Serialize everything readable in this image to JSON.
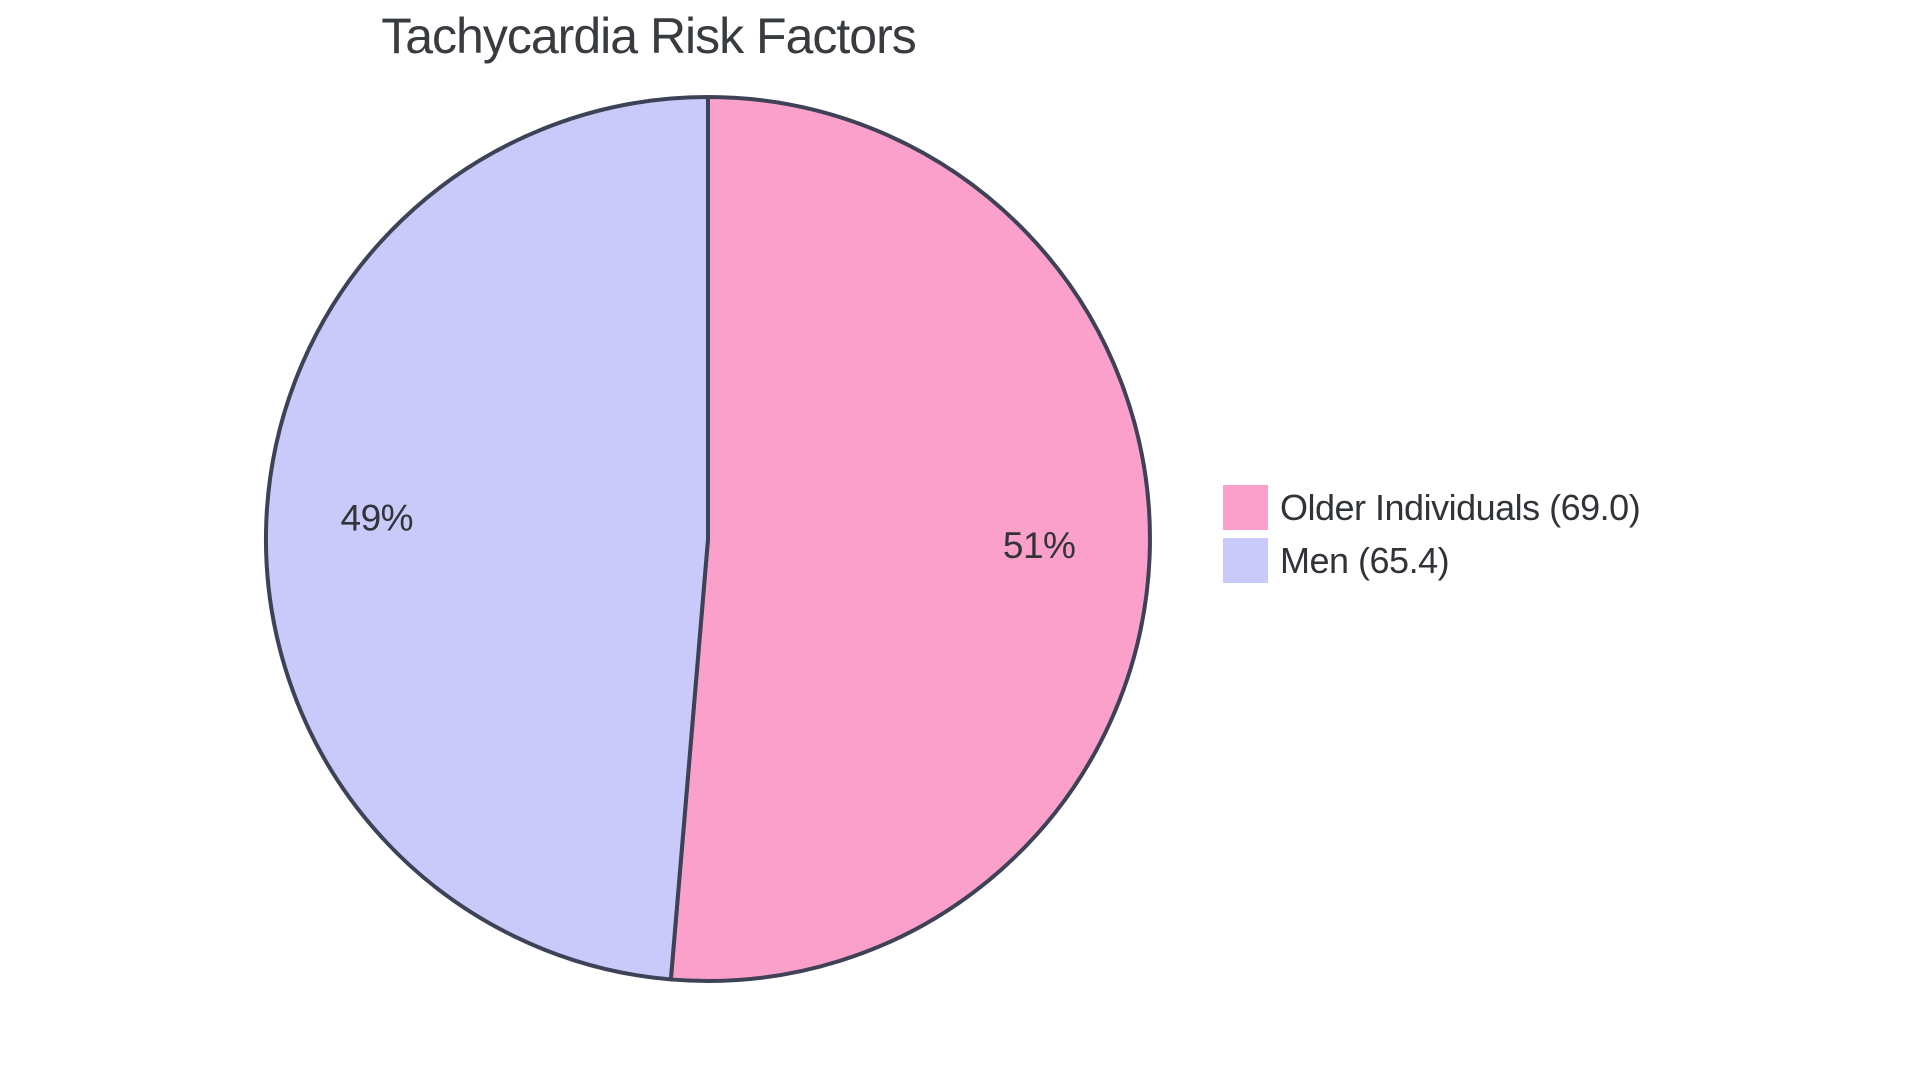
{
  "page": {
    "background": "#ffffff"
  },
  "chart_data": {
    "type": "pie",
    "title": "Tachycardia Risk Factors",
    "start_angle_deg": 0,
    "direction": "clockwise",
    "legend_position": "right",
    "grid": false,
    "slices": [
      {
        "label": "Older Individuals",
        "value": 69.0,
        "percent_label": "51%",
        "legend_label": "Older Individuals (69.0)",
        "color": "#FAA0CA"
      },
      {
        "label": "Men",
        "value": 65.4,
        "percent_label": "49%",
        "legend_label": "Men (65.4)",
        "color": "#C9CAFA"
      }
    ],
    "slice_border_color": "#3E4257",
    "slice_border_width": 4,
    "percent_label_color": "#323438",
    "title_color": "#383B40",
    "legend_text_color": "#303338"
  }
}
